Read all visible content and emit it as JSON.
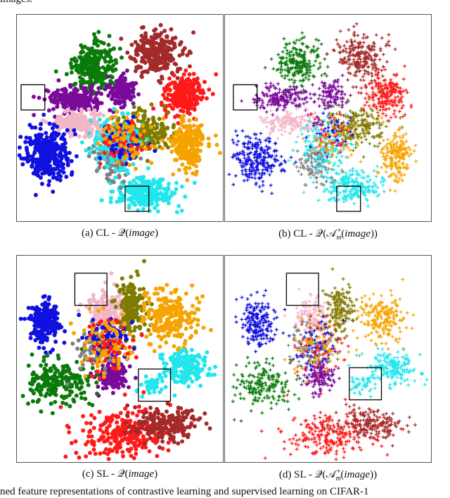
{
  "header_fragment": "images.",
  "footer_fragment": "ned feature representations of contrastive learning and supervised learning on CIFAR-1",
  "panels": [
    {
      "id": "a",
      "caption_prefix": "(a)  CL - ",
      "caption_math": "\\mathcal{Q}(image)",
      "caption_plain_left": "𝒬(",
      "caption_italic": "image",
      "caption_plain_right": ")",
      "marker": "circle",
      "highlight_boxes": 2
    },
    {
      "id": "b",
      "caption_prefix": "(b)  CL - ",
      "caption_plain_left": "𝒬(𝒜",
      "caption_sup": "+",
      "caption_sub": "m",
      "caption_italic": "image",
      "caption_plain_right": "))",
      "marker": "plus",
      "highlight_boxes": 2
    },
    {
      "id": "c",
      "caption_prefix": "(c)  SL - ",
      "caption_plain_left": "𝒬(",
      "caption_italic": "image",
      "caption_plain_right": ")",
      "marker": "circle",
      "highlight_boxes": 2
    },
    {
      "id": "d",
      "caption_prefix": "(d)  SL - ",
      "caption_plain_left": "𝒬(𝒜",
      "caption_sup": "+",
      "caption_sub": "m",
      "caption_italic": "image",
      "caption_plain_right": "))",
      "marker": "plus",
      "highlight_boxes": 2
    }
  ],
  "colors": {
    "green": "#0a7a0a",
    "brown": "#a32a2a",
    "red": "#ff1a1a",
    "purple": "#7a0a9a",
    "pink": "#f2b6c6",
    "blue": "#1010e0",
    "cyan": "#22e6ec",
    "olive": "#7f7a00",
    "orange": "#f5a300",
    "gray": "#808080"
  }
}
